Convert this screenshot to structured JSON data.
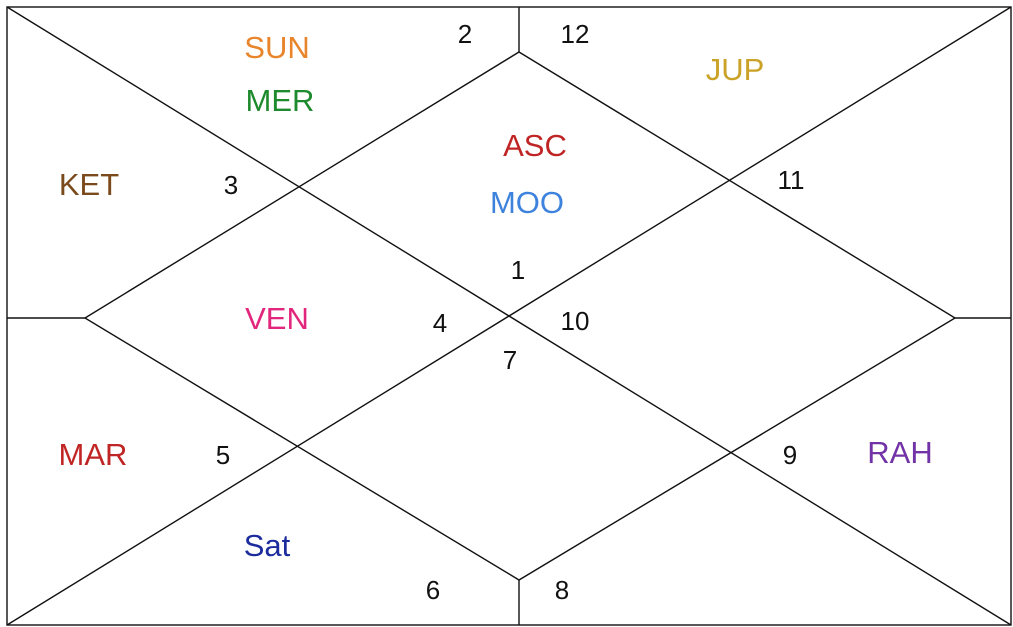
{
  "chart": {
    "house_numbers": [
      2,
      12,
      3,
      11,
      1,
      4,
      10,
      7,
      5,
      9,
      6,
      8
    ],
    "planets": [
      {
        "label": "SUN",
        "color": "#e8842a"
      },
      {
        "label": "MER",
        "color": "#1e8a2e"
      },
      {
        "label": "KET",
        "color": "#7b4a1c"
      },
      {
        "label": "ASC",
        "color": "#c02525"
      },
      {
        "label": "MOO",
        "color": "#3d82dc"
      },
      {
        "label": "JUP",
        "color": "#c9a227"
      },
      {
        "label": "VEN",
        "color": "#e3267d"
      },
      {
        "label": "MAR",
        "color": "#c02525"
      },
      {
        "label": "RAH",
        "color": "#7233a6"
      },
      {
        "label": "Sat",
        "color": "#1c2c9c"
      }
    ]
  }
}
